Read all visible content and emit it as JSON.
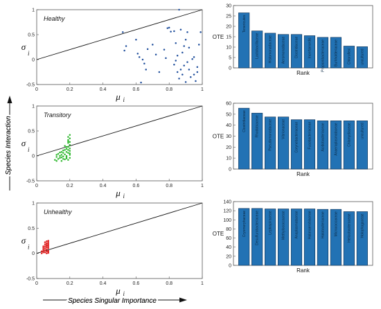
{
  "chart_data": [
    {
      "type": "scatter",
      "annotation": "Healthy",
      "xlabel": "μ",
      "xlabel_sub": "i",
      "ylabel": "σ",
      "ylabel_sub": "i",
      "xlim": [
        0,
        1
      ],
      "ylim": [
        -0.5,
        1
      ],
      "xticks": [
        "0",
        "0.2",
        "0.4",
        "0.6",
        "0.8",
        "1"
      ],
      "yticks": [
        "-0.5",
        "0",
        "0.5",
        "1"
      ],
      "color": "#1f4e9c",
      "line": {
        "x": [
          0,
          1
        ],
        "y": [
          0,
          1
        ]
      },
      "points": [
        [
          0.52,
          0.55
        ],
        [
          0.54,
          0.27
        ],
        [
          0.53,
          0.18
        ],
        [
          0.6,
          0.4
        ],
        [
          0.61,
          0.12
        ],
        [
          0.62,
          0.05
        ],
        [
          0.64,
          0.0
        ],
        [
          0.65,
          -0.08
        ],
        [
          0.67,
          0.21
        ],
        [
          0.63,
          -0.46
        ],
        [
          0.66,
          -0.2
        ],
        [
          0.7,
          0.3
        ],
        [
          0.72,
          0.1
        ],
        [
          0.74,
          -0.25
        ],
        [
          0.77,
          0.2
        ],
        [
          0.78,
          0.03
        ],
        [
          0.79,
          0.63
        ],
        [
          0.8,
          0.64
        ],
        [
          0.81,
          0.56
        ],
        [
          0.83,
          0.57
        ],
        [
          0.83,
          -0.1
        ],
        [
          0.84,
          -0.02
        ],
        [
          0.85,
          0.08
        ],
        [
          0.85,
          -0.25
        ],
        [
          0.86,
          1.0
        ],
        [
          0.86,
          -0.38
        ],
        [
          0.87,
          0.6
        ],
        [
          0.87,
          -0.2
        ],
        [
          0.88,
          0.14
        ],
        [
          0.88,
          -0.3
        ],
        [
          0.89,
          -0.12
        ],
        [
          0.89,
          0.27
        ],
        [
          0.9,
          -0.45
        ],
        [
          0.9,
          0.4
        ],
        [
          0.91,
          -0.05
        ],
        [
          0.91,
          0.55
        ],
        [
          0.92,
          0.24
        ],
        [
          0.92,
          -0.2
        ],
        [
          0.93,
          -0.35
        ],
        [
          0.94,
          0.01
        ],
        [
          0.95,
          0.05
        ],
        [
          0.96,
          -0.43
        ],
        [
          0.97,
          -0.15
        ],
        [
          0.98,
          0.3
        ],
        [
          0.99,
          0.55
        ],
        [
          0.97,
          -0.25
        ],
        [
          0.84,
          0.33
        ],
        [
          0.95,
          -0.3
        ]
      ]
    },
    {
      "type": "scatter",
      "annotation": "Transitory",
      "xlabel": "μ",
      "xlabel_sub": "i",
      "ylabel": "σ",
      "ylabel_sub": "i",
      "xlim": [
        0,
        1
      ],
      "ylim": [
        -0.5,
        1
      ],
      "xticks": [
        "0",
        "0.2",
        "0.4",
        "0.6",
        "0.8",
        "1"
      ],
      "yticks": [
        "-0.5",
        "0",
        "0.5",
        "1"
      ],
      "color": "#2eb82e",
      "line": {
        "x": [
          0,
          1
        ],
        "y": [
          0,
          1
        ]
      },
      "points": [
        [
          0.11,
          -0.08
        ],
        [
          0.12,
          -0.1
        ],
        [
          0.12,
          -0.02
        ],
        [
          0.13,
          -0.06
        ],
        [
          0.13,
          0.04
        ],
        [
          0.14,
          -0.04
        ],
        [
          0.14,
          0.0
        ],
        [
          0.15,
          -0.1
        ],
        [
          0.15,
          0.08
        ],
        [
          0.15,
          0.02
        ],
        [
          0.16,
          -0.06
        ],
        [
          0.16,
          0.06
        ],
        [
          0.16,
          -0.01
        ],
        [
          0.17,
          0.12
        ],
        [
          0.17,
          -0.07
        ],
        [
          0.17,
          0.03
        ],
        [
          0.18,
          0.0
        ],
        [
          0.18,
          -0.05
        ],
        [
          0.18,
          0.18
        ],
        [
          0.18,
          0.08
        ],
        [
          0.19,
          -0.08
        ],
        [
          0.19,
          0.26
        ],
        [
          0.19,
          0.32
        ],
        [
          0.19,
          0.12
        ],
        [
          0.19,
          0.38
        ],
        [
          0.2,
          0.02
        ],
        [
          0.2,
          0.05
        ],
        [
          0.2,
          -0.04
        ],
        [
          0.2,
          0.22
        ],
        [
          0.2,
          0.15
        ],
        [
          0.19,
          0.29
        ],
        [
          0.2,
          0.35
        ],
        [
          0.19,
          0.06
        ],
        [
          0.18,
          0.14
        ],
        [
          0.2,
          0.42
        ],
        [
          0.17,
          0.2
        ],
        [
          0.16,
          0.11
        ],
        [
          0.14,
          0.07
        ],
        [
          0.12,
          0.02
        ],
        [
          0.2,
          0.1
        ],
        [
          0.18,
          -0.02
        ],
        [
          0.19,
          0.18
        ],
        [
          0.15,
          -0.03
        ],
        [
          0.2,
          0.28
        ]
      ]
    },
    {
      "type": "scatter",
      "annotation": "Unhealthy",
      "xlabel": "μ",
      "xlabel_sub": "i",
      "ylabel": "σ",
      "ylabel_sub": "i",
      "xlim": [
        0,
        1
      ],
      "ylim": [
        -0.5,
        1
      ],
      "xticks": [
        "0",
        "0.2",
        "0.4",
        "0.6",
        "0.8",
        "1"
      ],
      "yticks": [
        "-0.5",
        "0",
        "0.5",
        "1"
      ],
      "color": "#e02020",
      "line": {
        "x": [
          0,
          1
        ],
        "y": [
          0,
          1
        ]
      },
      "points": [
        [
          0.03,
          0.0
        ],
        [
          0.03,
          0.04
        ],
        [
          0.04,
          0.08
        ],
        [
          0.04,
          0.02
        ],
        [
          0.04,
          0.14
        ],
        [
          0.05,
          0.06
        ],
        [
          0.05,
          0.1
        ],
        [
          0.05,
          0.02
        ],
        [
          0.05,
          0.18
        ],
        [
          0.06,
          0.04
        ],
        [
          0.06,
          0.12
        ],
        [
          0.06,
          0.2
        ],
        [
          0.06,
          0.0
        ],
        [
          0.06,
          0.08
        ],
        [
          0.07,
          0.03
        ],
        [
          0.07,
          0.16
        ],
        [
          0.07,
          0.1
        ],
        [
          0.07,
          0.22
        ],
        [
          0.07,
          0.05
        ],
        [
          0.07,
          0.13
        ],
        [
          0.06,
          0.17
        ],
        [
          0.05,
          0.14
        ],
        [
          0.04,
          0.11
        ],
        [
          0.07,
          0.19
        ],
        [
          0.06,
          0.24
        ],
        [
          0.07,
          0.25
        ],
        [
          0.05,
          0.22
        ],
        [
          0.07,
          0.01
        ],
        [
          0.04,
          0.05
        ],
        [
          0.06,
          0.15
        ]
      ]
    },
    {
      "type": "bar",
      "ylabel": "OTE",
      "xlabel": "Rank",
      "ylim": [
        0,
        30
      ],
      "yticks": [
        "0",
        "5",
        "10",
        "15",
        "20",
        "25",
        "30"
      ],
      "color": "#2272b4",
      "categories": [
        "Tenericutes",
        "Lactobacillaceae",
        "Histomonadaceae",
        "Aeromonadaceae",
        "Clostridiaceae",
        "Incertaesedis",
        "Propionibacteriaceae",
        "Burkholderiaceae",
        "Chloroflexi",
        "uncultured"
      ],
      "values": [
        26.5,
        17.8,
        16.7,
        16.1,
        16.1,
        15.5,
        14.7,
        14.7,
        10.5,
        10.2
      ]
    },
    {
      "type": "bar",
      "ylabel": "OTE",
      "xlabel": "Rank",
      "ylim": [
        0,
        60
      ],
      "yticks": [
        "0",
        "10",
        "20",
        "30",
        "40",
        "50",
        "60"
      ],
      "color": "#2272b4",
      "categories": [
        "Clostridiaceae",
        "Rhodobiaceae",
        "Pseudomonadaceae",
        "Vibrionaceae",
        "Corynebacteriaceae",
        "Fusobacteriaceae",
        "Acidobacteriaceae",
        "Anaeroplasmataceae",
        "Chlamydiaceae",
        "uncultured"
      ],
      "values": [
        55.5,
        51,
        47.5,
        47.5,
        45,
        45,
        44,
        44,
        44,
        44
      ]
    },
    {
      "type": "bar",
      "ylabel": "OTE",
      "xlabel": "Rank",
      "ylim": [
        0,
        140
      ],
      "yticks": [
        "0",
        "20",
        "40",
        "60",
        "80",
        "100",
        "120",
        "140"
      ],
      "color": "#2272b4",
      "categories": [
        "Cryomorphaceae",
        "Desulfurobacteriaceae",
        "Leptospiraceae",
        "Methylococcaceae",
        "Anaplasmataceae",
        "Halanaerobiaceae",
        "Halobacteriaceae",
        "Micrococcaceae",
        "Helicobacteraceae",
        "Holophagaceae"
      ],
      "values": [
        125,
        125,
        124,
        124,
        124,
        124,
        123,
        123,
        118,
        118
      ]
    }
  ],
  "big_ylabel": "Species Interaction",
  "big_xlabel": "Species Singular Importance"
}
